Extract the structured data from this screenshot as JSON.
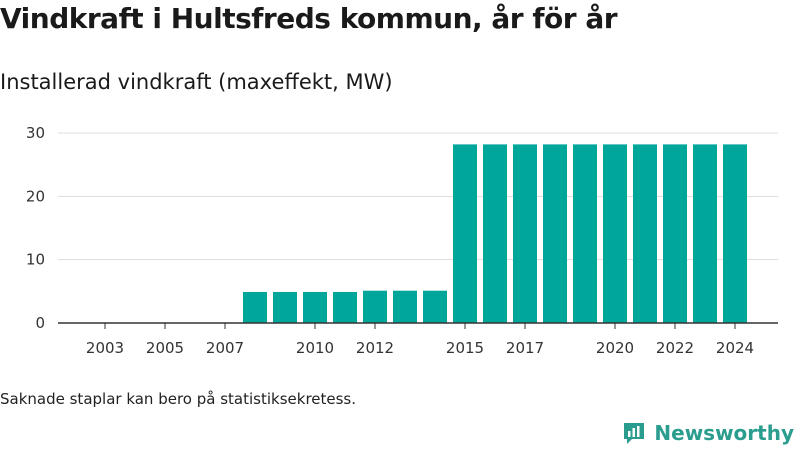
{
  "title": "Vindkraft i Hultsfreds kommun, år för år",
  "subtitle": "Installerad vindkraft (maxeffekt, MW)",
  "footnote": "Saknade staplar kan bero på statistiksekretess.",
  "brand": {
    "name": "Newsworthy",
    "icon": "bar-chart-icon",
    "color": "#2a9d8f"
  },
  "colors": {
    "bar": "#00a69a",
    "grid": "#dddddd",
    "axis": "#333333"
  },
  "chart_data": {
    "type": "bar",
    "categories": [
      "2003",
      "2004",
      "2005",
      "2006",
      "2007",
      "2008",
      "2009",
      "2010",
      "2011",
      "2012",
      "2013",
      "2014",
      "2015",
      "2016",
      "2017",
      "2018",
      "2019",
      "2020",
      "2021",
      "2022",
      "2023",
      "2024"
    ],
    "values": [
      0,
      0,
      0,
      0,
      0,
      4.9,
      4.9,
      4.9,
      4.9,
      5.1,
      5.1,
      5.1,
      28.2,
      28.2,
      28.2,
      28.2,
      28.2,
      28.2,
      28.2,
      28.2,
      28.2,
      28.2
    ],
    "x_tick_labels": [
      "2003",
      "2005",
      "2007",
      "2010",
      "2012",
      "2015",
      "2017",
      "2020",
      "2022",
      "2024"
    ],
    "y_ticks": [
      0,
      10,
      20,
      30
    ],
    "ylim": [
      0,
      30
    ],
    "xlabel": "",
    "ylabel": "",
    "grid": true
  }
}
